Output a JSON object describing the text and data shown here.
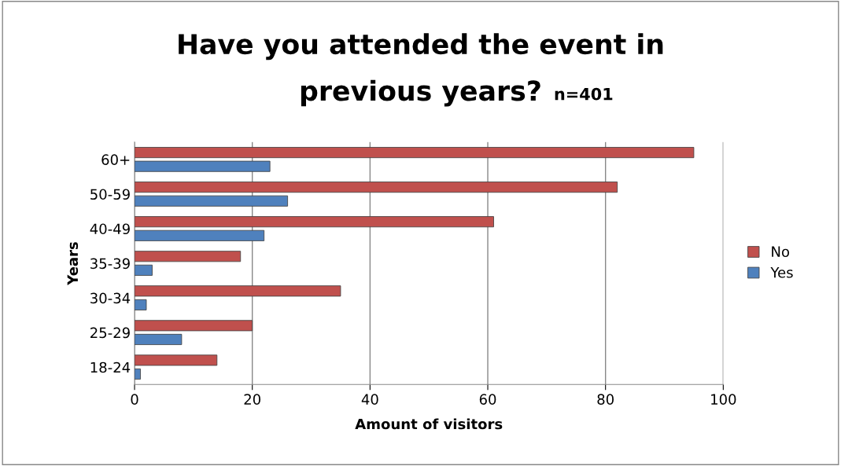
{
  "chart_data": {
    "type": "bar",
    "orientation": "horizontal",
    "title": "Have you attended the event in previous years?",
    "subtitle": "n=401",
    "xlabel": "Amount of visitors",
    "ylabel": "Years",
    "categories": [
      "60+",
      "50-59",
      "40-49",
      "35-39",
      "30-34",
      "25-29",
      "18-24"
    ],
    "series": [
      {
        "name": "No",
        "color": "#c0504d",
        "values": [
          95,
          82,
          61,
          18,
          35,
          20,
          14
        ]
      },
      {
        "name": "Yes",
        "color": "#4f81bd",
        "values": [
          23,
          26,
          22,
          3,
          2,
          8,
          1
        ]
      }
    ],
    "xlim": [
      0,
      100
    ],
    "xticks": [
      0,
      20,
      40,
      60,
      80,
      100
    ],
    "grid": "x",
    "legend": "right"
  }
}
